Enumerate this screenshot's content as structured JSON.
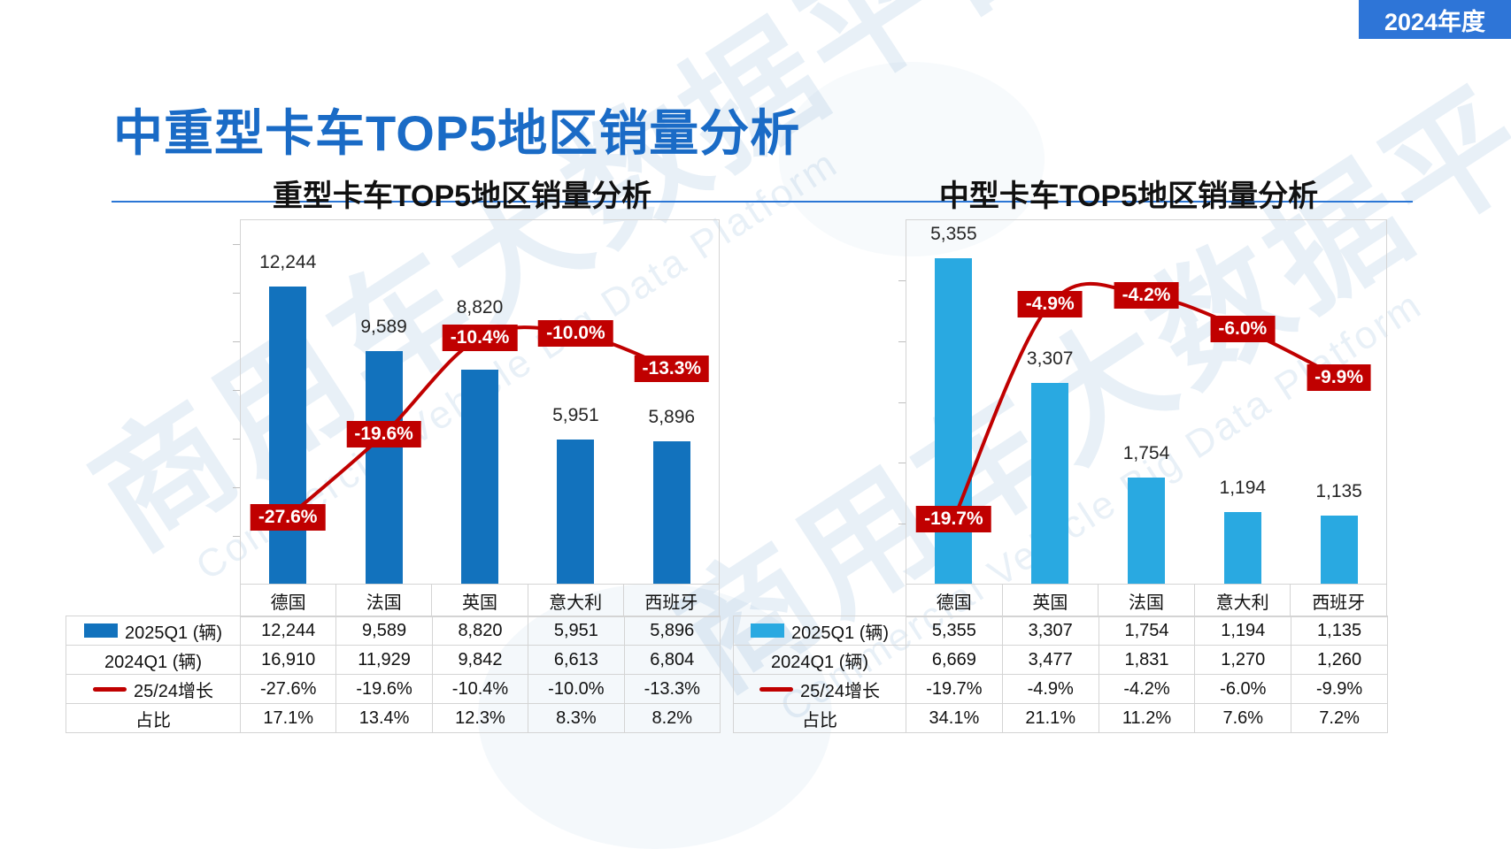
{
  "page": {
    "title": "中重型卡车TOP5地区销量分析"
  },
  "badge": {
    "label": "2024年度",
    "bg": "#2E75D7"
  },
  "theme": {
    "title_color": "#1A6BC6",
    "rule_color": "#2B76D5",
    "heavy_bar_color": "#1272BD",
    "medium_bar_color": "#29A9E1",
    "growth_line_color": "#C00000"
  },
  "watermark": {
    "cjk": "商用车大数据平台",
    "en": "Commercial Vehicle Big Data Platform"
  },
  "chart_data": [
    {
      "type": "bar+line",
      "title": "重型卡车TOP5地区销量分析",
      "categories": [
        "德国",
        "法国",
        "英国",
        "意大利",
        "西班牙"
      ],
      "ylim": [
        0,
        15000
      ],
      "ytick_interval": 2000,
      "yaxis_labels": "none",
      "grid": false,
      "legend_position": "table-bottom",
      "series": [
        {
          "name": "2025Q1 (辆)",
          "type": "bar",
          "color": "#1272BD",
          "values": [
            12244,
            9589,
            8820,
            5951,
            5896
          ],
          "labels": [
            "12,244",
            "9,589",
            "8,820",
            "5,951",
            "5,896"
          ]
        },
        {
          "name": "2024Q1 (辆)",
          "type": "table-row",
          "values": [
            16910,
            11929,
            9842,
            6613,
            6804
          ],
          "labels": [
            "16,910",
            "11,929",
            "9,842",
            "6,613",
            "6,804"
          ]
        },
        {
          "name": "25/24增长",
          "type": "line",
          "color": "#C00000",
          "values": [
            -27.6,
            -19.6,
            -10.4,
            -10.0,
            -13.3
          ],
          "labels": [
            "-27.6%",
            "-19.6%",
            "-10.4%",
            "-10.0%",
            "-13.3%"
          ]
        },
        {
          "name": "占比",
          "type": "table-row",
          "labels": [
            "17.1%",
            "13.4%",
            "12.3%",
            "8.3%",
            "8.2%"
          ]
        }
      ]
    },
    {
      "type": "bar+line",
      "title": "中型卡车TOP5地区销量分析",
      "categories": [
        "德国",
        "英国",
        "法国",
        "意大利",
        "西班牙"
      ],
      "ylim": [
        0,
        6000
      ],
      "ytick_interval": 1000,
      "yaxis_labels": "none",
      "grid": false,
      "legend_position": "table-bottom",
      "series": [
        {
          "name": "2025Q1 (辆)",
          "type": "bar",
          "color": "#29A9E1",
          "values": [
            5355,
            3307,
            1754,
            1194,
            1135
          ],
          "labels": [
            "5,355",
            "3,307",
            "1,754",
            "1,194",
            "1,135"
          ]
        },
        {
          "name": "2024Q1 (辆)",
          "type": "table-row",
          "values": [
            6669,
            3477,
            1831,
            1270,
            1260
          ],
          "labels": [
            "6,669",
            "3,477",
            "1,831",
            "1,270",
            "1,260"
          ]
        },
        {
          "name": "25/24增长",
          "type": "line",
          "color": "#C00000",
          "values": [
            -19.7,
            -4.9,
            -4.2,
            -6.0,
            -9.9
          ],
          "labels": [
            "-19.7%",
            "-4.9%",
            "-4.2%",
            "-6.0%",
            "-9.9%"
          ]
        },
        {
          "name": "占比",
          "type": "table-row",
          "labels": [
            "34.1%",
            "21.1%",
            "11.2%",
            "7.6%",
            "7.2%"
          ]
        }
      ]
    }
  ]
}
